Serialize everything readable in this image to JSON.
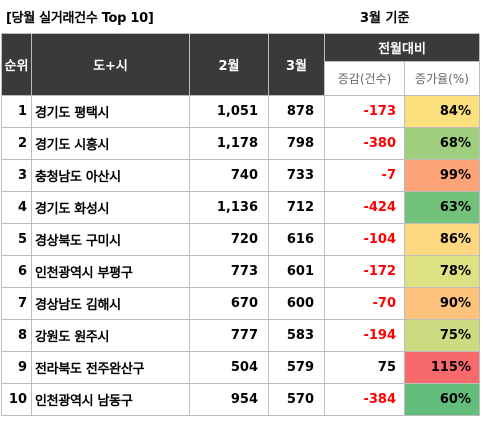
{
  "title": "[당월 실거래건수 Top 10]",
  "basis": "3월 기준",
  "headers": {
    "rank": "순위",
    "region": "도+시",
    "feb": "2월",
    "mar": "3월",
    "mom": "전월대비",
    "change": "증감(건수)",
    "rate": "증가율(%)"
  },
  "rows": [
    {
      "rank": "1",
      "region": "경기도 평택시",
      "feb": "1,051",
      "mar": "878",
      "change": "-173",
      "rate": "84%",
      "rate_color": "#fde07e"
    },
    {
      "rank": "2",
      "region": "경기도 시흥시",
      "feb": "1,178",
      "mar": "798",
      "change": "-380",
      "rate": "68%",
      "rate_color": "#9fcf7e"
    },
    {
      "rank": "3",
      "region": "충청남도 아산시",
      "feb": "740",
      "mar": "733",
      "change": "-7",
      "rate": "99%",
      "rate_color": "#fca477"
    },
    {
      "rank": "4",
      "region": "경기도 화성시",
      "feb": "1,136",
      "mar": "712",
      "change": "-424",
      "rate": "63%",
      "rate_color": "#72c27c"
    },
    {
      "rank": "5",
      "region": "경상북도 구미시",
      "feb": "720",
      "mar": "616",
      "change": "-104",
      "rate": "86%",
      "rate_color": "#fed781"
    },
    {
      "rank": "6",
      "region": "인천광역시 부평구",
      "feb": "773",
      "mar": "601",
      "change": "-172",
      "rate": "78%",
      "rate_color": "#dde182"
    },
    {
      "rank": "7",
      "region": "경상남도 김해시",
      "feb": "670",
      "mar": "600",
      "change": "-70",
      "rate": "90%",
      "rate_color": "#fdc27c"
    },
    {
      "rank": "8",
      "region": "강원도 원주시",
      "feb": "777",
      "mar": "583",
      "change": "-194",
      "rate": "75%",
      "rate_color": "#cbdb81"
    },
    {
      "rank": "9",
      "region": "전라북도 전주완산구",
      "feb": "504",
      "mar": "579",
      "change": "75",
      "rate": "115%",
      "rate_color": "#f8696b"
    },
    {
      "rank": "10",
      "region": "인천광역시 남동구",
      "feb": "954",
      "mar": "570",
      "change": "-384",
      "rate": "60%",
      "rate_color": "#63be7b"
    }
  ]
}
